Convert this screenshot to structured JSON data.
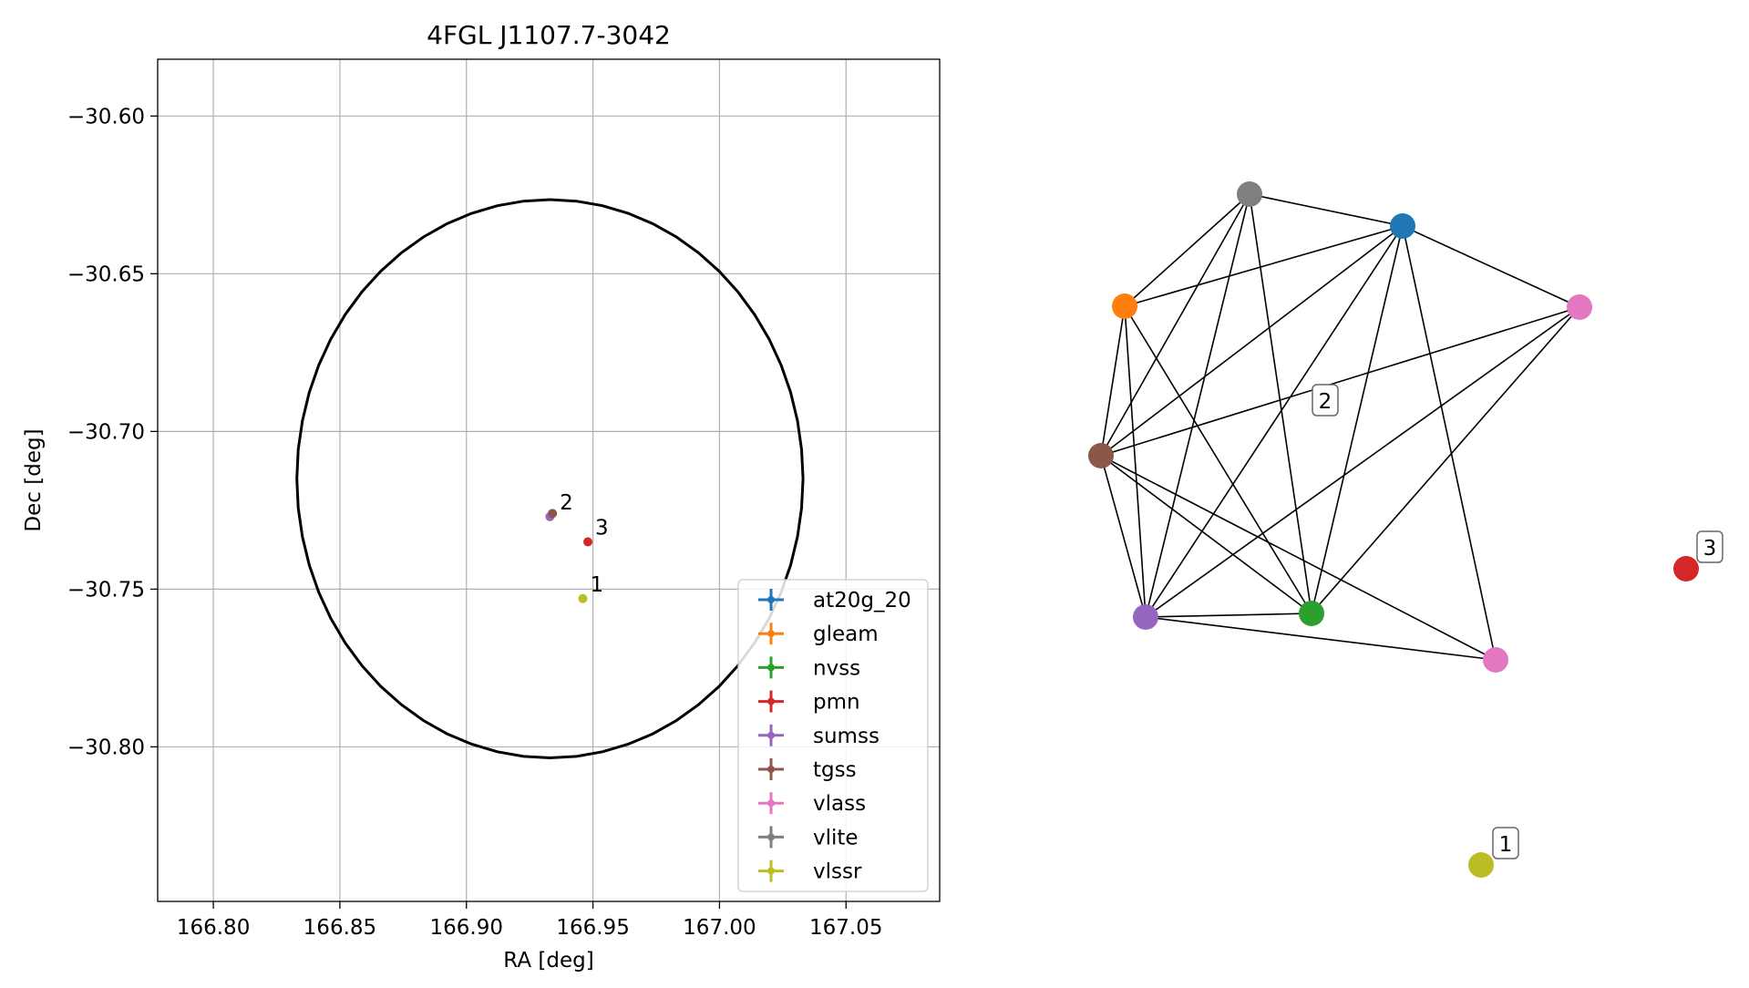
{
  "chart_data": [
    {
      "type": "scatter",
      "title": "4FGL J1107.7-3042",
      "xlabel": "RA [deg]",
      "ylabel": "Dec [deg]",
      "xlim": [
        166.778,
        167.087
      ],
      "ylim": [
        -30.849,
        -30.582
      ],
      "xticks": [
        166.8,
        166.85,
        166.9,
        166.95,
        167.0,
        167.05
      ],
      "xtick_labels": [
        "166.80",
        "166.85",
        "166.90",
        "166.95",
        "167.00",
        "167.05"
      ],
      "yticks": [
        -30.6,
        -30.65,
        -30.7,
        -30.75,
        -30.8
      ],
      "ytick_labels": [
        "−30.60",
        "−30.65",
        "−30.70",
        "−30.75",
        "−30.80"
      ],
      "grid": true,
      "legend_position": "lower-right",
      "ellipse": {
        "center": [
          166.933,
          -30.715
        ],
        "semi_axis_ra": 0.1,
        "semi_axis_dec": 0.0885,
        "color": "#000000"
      },
      "series": [
        {
          "name": "at20g_20",
          "color": "#1f77b4",
          "points": []
        },
        {
          "name": "gleam",
          "color": "#ff7f0e",
          "points": []
        },
        {
          "name": "nvss",
          "color": "#2ca02c",
          "points": []
        },
        {
          "name": "pmn",
          "color": "#d62728",
          "points": [
            [
              166.948,
              -30.735
            ]
          ]
        },
        {
          "name": "sumss",
          "color": "#9467bd",
          "points": [
            [
              166.933,
              -30.727
            ]
          ]
        },
        {
          "name": "tgss",
          "color": "#8c564b",
          "points": [
            [
              166.934,
              -30.726
            ]
          ]
        },
        {
          "name": "vlass",
          "color": "#e377c2",
          "points": []
        },
        {
          "name": "vlite",
          "color": "#7f7f7f",
          "points": []
        },
        {
          "name": "vlssr",
          "color": "#bcbd22",
          "points": [
            [
              166.946,
              -30.753
            ]
          ]
        }
      ],
      "annotations": [
        {
          "text": "2",
          "x": 166.934,
          "y": -30.727
        },
        {
          "text": "3",
          "x": 166.948,
          "y": -30.735
        },
        {
          "text": "1",
          "x": 166.946,
          "y": -30.753
        }
      ]
    },
    {
      "type": "network",
      "nodes": [
        {
          "id": "vlite",
          "color": "#7f7f7f"
        },
        {
          "id": "at20g_20",
          "color": "#1f77b4"
        },
        {
          "id": "gleam",
          "color": "#ff7f0e"
        },
        {
          "id": "vlass_a",
          "color": "#e377c2"
        },
        {
          "id": "tgss",
          "color": "#8c564b"
        },
        {
          "id": "sumss",
          "color": "#9467bd"
        },
        {
          "id": "nvss",
          "color": "#2ca02c"
        },
        {
          "id": "vlass_b",
          "color": "#e377c2"
        },
        {
          "id": "pmn",
          "color": "#d62728"
        },
        {
          "id": "vlssr",
          "color": "#bcbd22"
        }
      ],
      "edges": [
        [
          "vlite",
          "at20g_20"
        ],
        [
          "vlite",
          "gleam"
        ],
        [
          "vlite",
          "tgss"
        ],
        [
          "vlite",
          "sumss"
        ],
        [
          "vlite",
          "nvss"
        ],
        [
          "at20g_20",
          "gleam"
        ],
        [
          "at20g_20",
          "vlass_a"
        ],
        [
          "at20g_20",
          "tgss"
        ],
        [
          "at20g_20",
          "sumss"
        ],
        [
          "at20g_20",
          "nvss"
        ],
        [
          "at20g_20",
          "vlass_b"
        ],
        [
          "gleam",
          "tgss"
        ],
        [
          "gleam",
          "sumss"
        ],
        [
          "gleam",
          "nvss"
        ],
        [
          "vlass_a",
          "tgss"
        ],
        [
          "vlass_a",
          "sumss"
        ],
        [
          "vlass_a",
          "nvss"
        ],
        [
          "tgss",
          "sumss"
        ],
        [
          "tgss",
          "nvss"
        ],
        [
          "tgss",
          "vlass_b"
        ],
        [
          "sumss",
          "nvss"
        ],
        [
          "sumss",
          "vlass_b"
        ]
      ],
      "labels": [
        {
          "text": "2",
          "near": "cluster"
        },
        {
          "text": "3",
          "near": "pmn"
        },
        {
          "text": "1",
          "near": "vlssr"
        }
      ]
    }
  ]
}
